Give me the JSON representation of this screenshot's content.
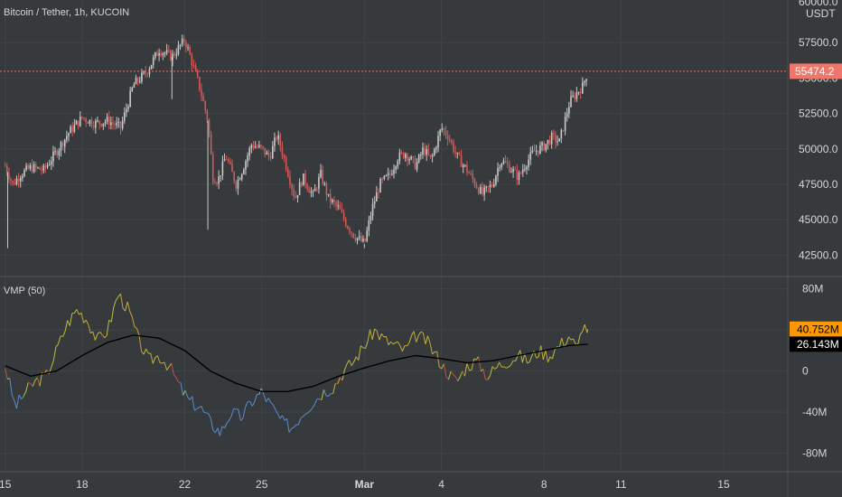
{
  "header": {
    "symbol_label": "Bitcoin / Tether, 1h, KUCOIN",
    "indicator_label": "VMP (50)",
    "currency_label": "USDT",
    "top_clipped_value": "60000.0"
  },
  "colors": {
    "background": "#363a3c",
    "grid": "#3f4446",
    "candle_up": "#c9c9c9",
    "candle_down": "#d05a5a",
    "price_line": "#e8736a",
    "price_badge": "#f0766b",
    "vmp_ma": "#000000",
    "vmp_badge": "#ff9800",
    "ma_badge": "#000000",
    "vmp_up": "#b9bf3a",
    "vmp_down": "#c0504d",
    "vmp_blue": "#5b8bd0"
  },
  "chart_data": [
    {
      "type": "candlestick",
      "title": "Bitcoin / Tether, 1h, KUCOIN",
      "ylabel": "USDT",
      "ylim": [
        41000,
        60500
      ],
      "y_ticks": [
        "42500.0",
        "45000.0",
        "47500.0",
        "50000.0",
        "52500.0",
        "55000.0",
        "57500.0"
      ],
      "y_tick_values": [
        42500,
        45000,
        47500,
        50000,
        52500,
        55000,
        57500
      ],
      "current_price": 55474.2,
      "current_price_label": "55474.2",
      "x_tick_labels": [
        "15",
        "18",
        "22",
        "25",
        "Mar",
        "4",
        "8",
        "11",
        "15"
      ],
      "x_tick_days": [
        15,
        18,
        22,
        25,
        29,
        32,
        36,
        39,
        43
      ],
      "xlim_days": [
        14.8,
        45.5
      ],
      "last_day": 37.7,
      "close_series": [
        [
          15.0,
          48800
        ],
        [
          15.3,
          47500
        ],
        [
          15.6,
          48200
        ],
        [
          16.0,
          48700
        ],
        [
          16.5,
          48500
        ],
        [
          17.0,
          49800
        ],
        [
          17.5,
          51200
        ],
        [
          18.0,
          52200
        ],
        [
          18.5,
          51800
        ],
        [
          19.0,
          52000
        ],
        [
          19.5,
          51500
        ],
        [
          20.0,
          54500
        ],
        [
          20.5,
          55400
        ],
        [
          21.0,
          57000
        ],
        [
          21.5,
          56500
        ],
        [
          22.0,
          57700
        ],
        [
          22.3,
          56000
        ],
        [
          22.6,
          54200
        ],
        [
          22.9,
          52000
        ],
        [
          23.1,
          48000
        ],
        [
          23.3,
          47800
        ],
        [
          23.6,
          49500
        ],
        [
          24.0,
          47500
        ],
        [
          24.3,
          48800
        ],
        [
          24.6,
          50300
        ],
        [
          25.0,
          50000
        ],
        [
          25.3,
          49400
        ],
        [
          25.6,
          51000
        ],
        [
          26.0,
          48500
        ],
        [
          26.3,
          46500
        ],
        [
          26.6,
          48000
        ],
        [
          27.0,
          46700
        ],
        [
          27.3,
          48200
        ],
        [
          27.6,
          46500
        ],
        [
          28.0,
          45800
        ],
        [
          28.3,
          44700
        ],
        [
          28.6,
          43900
        ],
        [
          29.0,
          43300
        ],
        [
          29.3,
          45800
        ],
        [
          29.6,
          47500
        ],
        [
          30.0,
          48200
        ],
        [
          30.3,
          49400
        ],
        [
          30.6,
          49700
        ],
        [
          31.0,
          48800
        ],
        [
          31.3,
          50000
        ],
        [
          31.6,
          49200
        ],
        [
          32.0,
          51500
        ],
        [
          32.3,
          50800
        ],
        [
          32.6,
          49500
        ],
        [
          33.0,
          48500
        ],
        [
          33.3,
          47600
        ],
        [
          33.6,
          46800
        ],
        [
          34.0,
          47500
        ],
        [
          34.3,
          49200
        ],
        [
          34.6,
          48800
        ],
        [
          35.0,
          48000
        ],
        [
          35.3,
          49000
        ],
        [
          35.6,
          49800
        ],
        [
          36.0,
          50200
        ],
        [
          36.3,
          50800
        ],
        [
          36.6,
          50500
        ],
        [
          37.0,
          53300
        ],
        [
          37.3,
          54000
        ],
        [
          37.5,
          54400
        ],
        [
          37.7,
          55474
        ]
      ],
      "low_spikes": [
        [
          15.1,
          43000
        ],
        [
          22.9,
          44300
        ],
        [
          21.5,
          53500
        ],
        [
          29.0,
          43000
        ]
      ]
    },
    {
      "type": "line",
      "title": "VMP (50)",
      "ylim": [
        -98,
        92
      ],
      "y_ticks": [
        "-80M",
        "-40M",
        "0",
        "40M",
        "80M"
      ],
      "y_tick_values": [
        -80,
        -40,
        0,
        40,
        80
      ],
      "vmp_label": "40.752M",
      "ma_label": "26.143M",
      "series": [
        {
          "values_x": [
            15.0,
            15.4,
            15.8,
            16.2,
            16.6,
            17.0,
            17.4,
            17.8,
            18.2,
            18.6,
            19.0,
            19.4,
            19.8,
            20.2,
            20.6,
            21.0,
            21.4,
            21.8,
            22.2,
            22.6,
            23.0,
            23.4,
            23.8,
            24.2,
            24.6,
            25.0,
            25.4,
            25.8,
            26.2,
            26.6,
            27.0,
            27.4,
            27.8,
            28.2,
            28.6,
            29.0,
            29.4,
            29.8,
            30.2,
            30.6,
            31.0,
            31.4,
            31.8,
            32.2,
            32.6,
            33.0,
            33.4,
            33.8,
            34.2,
            34.6,
            35.0,
            35.4,
            35.8,
            36.2,
            36.6,
            37.0,
            37.3,
            37.5,
            37.7
          ],
          "values_y": [
            5,
            -35,
            -20,
            -10,
            -5,
            20,
            45,
            60,
            50,
            30,
            40,
            75,
            60,
            30,
            10,
            15,
            5,
            -15,
            -30,
            -35,
            -50,
            -60,
            -40,
            -45,
            -30,
            -20,
            -35,
            -50,
            -55,
            -40,
            -30,
            -20,
            -15,
            0,
            10,
            25,
            40,
            30,
            25,
            20,
            35,
            30,
            15,
            0,
            -10,
            5,
            10,
            -5,
            5,
            10,
            15,
            10,
            20,
            15,
            25,
            35,
            20,
            45,
            40.752
          ]
        },
        {
          "values_x": [
            15.0,
            16.0,
            17.0,
            18.0,
            19.0,
            20.0,
            21.0,
            22.0,
            23.0,
            24.0,
            25.0,
            26.0,
            27.0,
            28.0,
            29.0,
            30.0,
            31.0,
            32.0,
            33.0,
            34.0,
            35.0,
            36.0,
            37.0,
            37.7
          ],
          "values_y": [
            5,
            -5,
            0,
            15,
            28,
            35,
            32,
            20,
            0,
            -12,
            -20,
            -20,
            -15,
            -5,
            3,
            10,
            15,
            12,
            8,
            10,
            15,
            20,
            25,
            26.143
          ]
        }
      ]
    }
  ]
}
